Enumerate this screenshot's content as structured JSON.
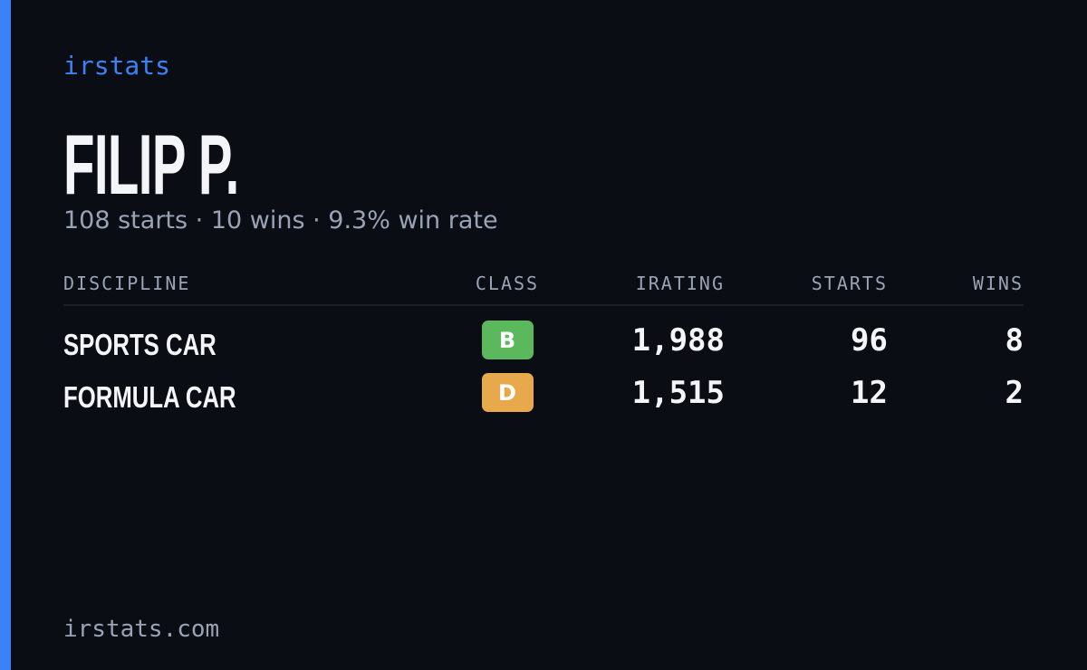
{
  "brand": "irstats",
  "driver": {
    "name": "FILIP P.",
    "summary": "108 starts · 10 wins · 9.3% win rate"
  },
  "table": {
    "header": [
      "DISCIPLINE",
      "CLASS",
      "IRATING",
      "STARTS",
      "WINS"
    ],
    "rows": [
      [
        "SPORTS CAR",
        "B",
        "1,988",
        "96",
        "8"
      ],
      [
        "FORMULA CAR",
        "D",
        "1,515",
        "12",
        "2"
      ]
    ],
    "class_colors": [
      "#5cb85c",
      "#e8a94c"
    ]
  },
  "footer": "irstats.com"
}
